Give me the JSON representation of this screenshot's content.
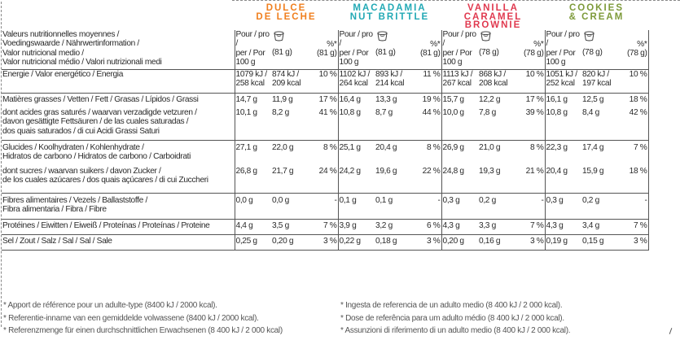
{
  "header_labels": [
    "Valeurs nutritionnelles moyennes /",
    "Voedingswaarde / Nährwertinformation /",
    "Valor nutricional medio /",
    "Valor nutricional médio / Valori nutrizionali medi"
  ],
  "flavours": [
    {
      "line1": "DULCE",
      "line2": "DE LECHE",
      "color": "#f07f1e",
      "serving": "(81 g)",
      "serving_pct": "(81 g)"
    },
    {
      "line1": "MACADAMIA",
      "line2": "NUT BRITTLE",
      "color": "#22a9b5",
      "serving": "(81 g)",
      "serving_pct": "(81 g)"
    },
    {
      "line1": "VANILLA",
      "line2": "CARAMEL BROWNIE",
      "color": "#e0394f",
      "serving": "(78 g)",
      "serving_pct": "(78 g)"
    },
    {
      "line1": "COOKIES",
      "line2": "& CREAM",
      "color": "#7d9a3a",
      "serving": "(78 g)",
      "serving_pct": "(78 g)"
    }
  ],
  "column_labels": {
    "per_100_l1": "Pour / pro /",
    "per_100_l2": "per / Por",
    "per_100_l3": "100 g",
    "pct": "%*",
    "cup_icon": "ice-cream-cup-icon"
  },
  "rows": [
    {
      "label": [
        "Energie / Valor energético / Energia"
      ],
      "values": [
        [
          "1079 kJ /",
          "258 kcal",
          "874 kJ /",
          "209 kcal",
          "10 %"
        ],
        [
          "1102 kJ /",
          "264 kcal",
          "893 kJ /",
          "214 kcal",
          "11 %"
        ],
        [
          "1113 kJ /",
          "267 kcal",
          "868 kJ /",
          "208 kcal",
          "10 %"
        ],
        [
          "1051 kJ /",
          "252 kcal",
          "820 kJ /",
          "197 kcal",
          "10 %"
        ]
      ]
    },
    {
      "label": [
        "Matières grasses / Vetten / Fett / Grasas / Lípidos / Grassi"
      ],
      "values": [
        [
          "14,7 g",
          "",
          "11,9 g",
          "",
          "17 %"
        ],
        [
          "16,4 g",
          "",
          "13,3 g",
          "",
          "19 %"
        ],
        [
          "15,7 g",
          "",
          "12,2 g",
          "",
          "17 %"
        ],
        [
          "16,1 g",
          "",
          "12,5 g",
          "",
          "18 %"
        ]
      ]
    },
    {
      "label": [
        "dont acides gras saturés / waarvan verzadigde vetzuren /",
        "davon gesättigte Fettsäuren / de las cuales saturadas /",
        "dos quais saturados / di cui Acidi Grassi Saturi"
      ],
      "values": [
        [
          "10,1 g",
          "",
          "8,2 g",
          "",
          "41 %"
        ],
        [
          "10,8 g",
          "",
          "8,7 g",
          "",
          "44 %"
        ],
        [
          "10,0 g",
          "",
          "7,8 g",
          "",
          "39 %"
        ],
        [
          "10,8 g",
          "",
          "8,4 g",
          "",
          "42 %"
        ]
      ]
    },
    {
      "label": [
        "Glucides / Koolhydraten / Kohlenhydrate /",
        "Hidratos de carbono / Hidratos de carbono / Carboidrati"
      ],
      "values": [
        [
          "27,1 g",
          "",
          "22,0 g",
          "",
          "8 %"
        ],
        [
          "25,1 g",
          "",
          "20,4 g",
          "",
          "8 %"
        ],
        [
          "26,9 g",
          "",
          "21,0 g",
          "",
          "8 %"
        ],
        [
          "22,3 g",
          "",
          "17,4 g",
          "",
          "7 %"
        ]
      ]
    },
    {
      "label": [
        "dont sucres / waarvan suikers / davon Zucker /",
        "de los cuales azúcares / dos quais açúcares / di cui Zuccheri"
      ],
      "values": [
        [
          "26,8 g",
          "",
          "21,7 g",
          "",
          "24 %"
        ],
        [
          "24,2 g",
          "",
          "19,6 g",
          "",
          "22 %"
        ],
        [
          "24,8 g",
          "",
          "19,3 g",
          "",
          "21 %"
        ],
        [
          "20,4 g",
          "",
          "15,9 g",
          "",
          "18 %"
        ]
      ]
    },
    {
      "label": [
        "Fibres alimentaires / Vezels / Ballaststoffe /",
        "Fibra alimentaria / Fibra / Fibre"
      ],
      "values": [
        [
          "0,0 g",
          "",
          "0,0 g",
          "",
          "-"
        ],
        [
          "0,1 g",
          "",
          "0,1 g",
          "",
          "-"
        ],
        [
          "0,3 g",
          "",
          "0,2 g",
          "",
          "-"
        ],
        [
          "0,3 g",
          "",
          "0,2 g",
          "",
          "-"
        ]
      ]
    },
    {
      "label": [
        "Protéines / Eiwitten / Eiweiß / Proteínas / Proteínas / Proteine"
      ],
      "values": [
        [
          "4,4 g",
          "",
          "3,5 g",
          "",
          "7 %"
        ],
        [
          "3,9 g",
          "",
          "3,2 g",
          "",
          "6 %"
        ],
        [
          "4,3 g",
          "",
          "3,3 g",
          "",
          "7 %"
        ],
        [
          "4,3 g",
          "",
          "3,4 g",
          "",
          "7 %"
        ]
      ]
    },
    {
      "label": [
        "Sel / Zout / Salz / Sal / Sal / Sale"
      ],
      "values": [
        [
          "0,25 g",
          "",
          "0,20 g",
          "",
          "3 %"
        ],
        [
          "0,22 g",
          "",
          "0,18 g",
          "",
          "3 %"
        ],
        [
          "0,20 g",
          "",
          "0,16 g",
          "",
          "3 %"
        ],
        [
          "0,19 g",
          "",
          "0,15 g",
          "",
          "3 %"
        ]
      ]
    }
  ],
  "footnotes_left": [
    "* Apport de référence pour un adulte-type (8400 kJ / 2000 kcal).",
    "* Referentie-inname van een gemiddelde volwassene (8400 kJ / 2000 kcal).",
    "* Referenzmenge für einen durchschnittlichen Erwachsenen (8 400 kJ / 2 000 kcal)"
  ],
  "footnotes_right": [
    "* Ingesta de referencia de un adulto medio (8 400 kJ / 2 000 kcal).",
    "* Dose de referência para um adulto médio (8 400 kJ / 2 000 kcal).",
    "* Assunzioni di riferimento di un adulto medio (8 400 kJ / 2 000 kcal)."
  ]
}
